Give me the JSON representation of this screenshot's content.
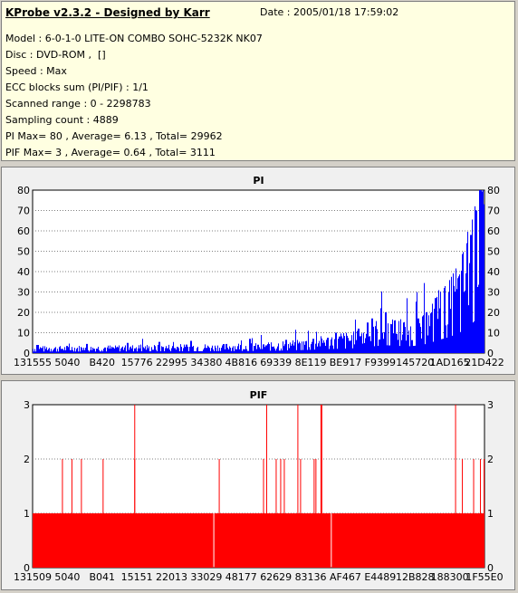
{
  "header": {
    "title": "KProbe v2.3.2 - Designed by Karr",
    "date": "Date : 2005/01/18 17:59:02",
    "lines": [
      "Model : 6-0-1-0 LITE-ON COMBO SOHC-5232K NK07",
      "Disc : DVD-ROM ,  []",
      "Speed : Max",
      "ECC blocks sum (PI/PIF) : 1/1",
      "Scanned range : 0 - 2298783",
      "Sampling count : 4889",
      "PI Max= 80 , Average= 6.13 , Total= 29962",
      "PIF Max= 3 , Average= 0.64 , Total= 3111"
    ]
  },
  "colors": {
    "pi": "#0000ff",
    "pif": "#ff0000",
    "info_bg": "#ffffe1",
    "plot_bg": "#ffffff",
    "grid": "#808080"
  },
  "chart_data": [
    {
      "type": "area",
      "title": "PI",
      "x_tick_labels": [
        "131555",
        "5040",
        "B420",
        "15776",
        "22995",
        "34380",
        "4B816",
        "69339",
        "8E119",
        "BE917",
        "F9399",
        "145720",
        "1AD165",
        "21D422"
      ],
      "y_ticks": [
        0,
        10,
        20,
        30,
        40,
        50,
        60,
        70,
        80
      ],
      "ylim": [
        0,
        80
      ],
      "grid": true,
      "sample_count": 4889,
      "profile": [
        [
          0,
          2.5
        ],
        [
          10,
          2.6
        ],
        [
          20,
          2.8
        ],
        [
          30,
          3
        ],
        [
          40,
          3.2
        ],
        [
          50,
          3.6
        ],
        [
          55,
          4.2
        ],
        [
          60,
          5
        ],
        [
          65,
          6.5
        ],
        [
          70,
          7.5
        ],
        [
          73,
          8.5
        ],
        [
          75,
          11
        ],
        [
          78,
          13
        ],
        [
          80,
          12
        ],
        [
          83,
          11
        ],
        [
          86,
          13
        ],
        [
          88,
          17
        ],
        [
          90,
          22
        ],
        [
          92,
          26
        ],
        [
          94,
          32
        ],
        [
          96,
          40
        ],
        [
          97,
          47
        ],
        [
          98,
          55
        ],
        [
          99,
          65
        ],
        [
          100,
          75
        ]
      ],
      "spikes": [
        [
          1,
          4
        ],
        [
          12,
          4.5
        ],
        [
          21,
          5
        ],
        [
          28,
          5.5
        ],
        [
          35,
          6
        ],
        [
          48,
          7
        ],
        [
          56,
          6.5
        ],
        [
          62,
          7
        ],
        [
          67,
          10
        ],
        [
          72,
          12
        ],
        [
          74,
          15
        ],
        [
          75,
          17
        ],
        [
          77,
          22
        ],
        [
          78,
          20
        ],
        [
          80,
          16
        ],
        [
          82,
          15
        ],
        [
          85,
          17
        ],
        [
          87,
          20
        ],
        [
          89,
          27
        ],
        [
          91,
          32
        ],
        [
          93,
          33
        ],
        [
          95,
          40
        ],
        [
          97,
          58
        ],
        [
          98,
          70
        ],
        [
          99,
          80
        ]
      ]
    },
    {
      "type": "bar",
      "title": "PIF",
      "x_tick_labels": [
        "131509",
        "5040",
        "B041",
        "15151",
        "22013",
        "33029",
        "48177",
        "62629",
        "83136",
        "AF467",
        "E4489",
        "12B828",
        "188300",
        "1F55E0"
      ],
      "y_ticks": [
        0,
        1,
        2,
        3
      ],
      "ylim": [
        0,
        3
      ],
      "grid": true,
      "baseline_value": 1,
      "gaps_at_percent": [
        40,
        66
      ],
      "value_2_at_percent": [
        6.5,
        8.6,
        10.7,
        15.5,
        22.5,
        41.2,
        51,
        53.8,
        54.8,
        55.6,
        59.2,
        62.2,
        62.6,
        95,
        97.5,
        99,
        100
      ],
      "value_3_at_percent": [
        22.5,
        51.7,
        58.6,
        63.7,
        63.9,
        93.5
      ]
    }
  ]
}
